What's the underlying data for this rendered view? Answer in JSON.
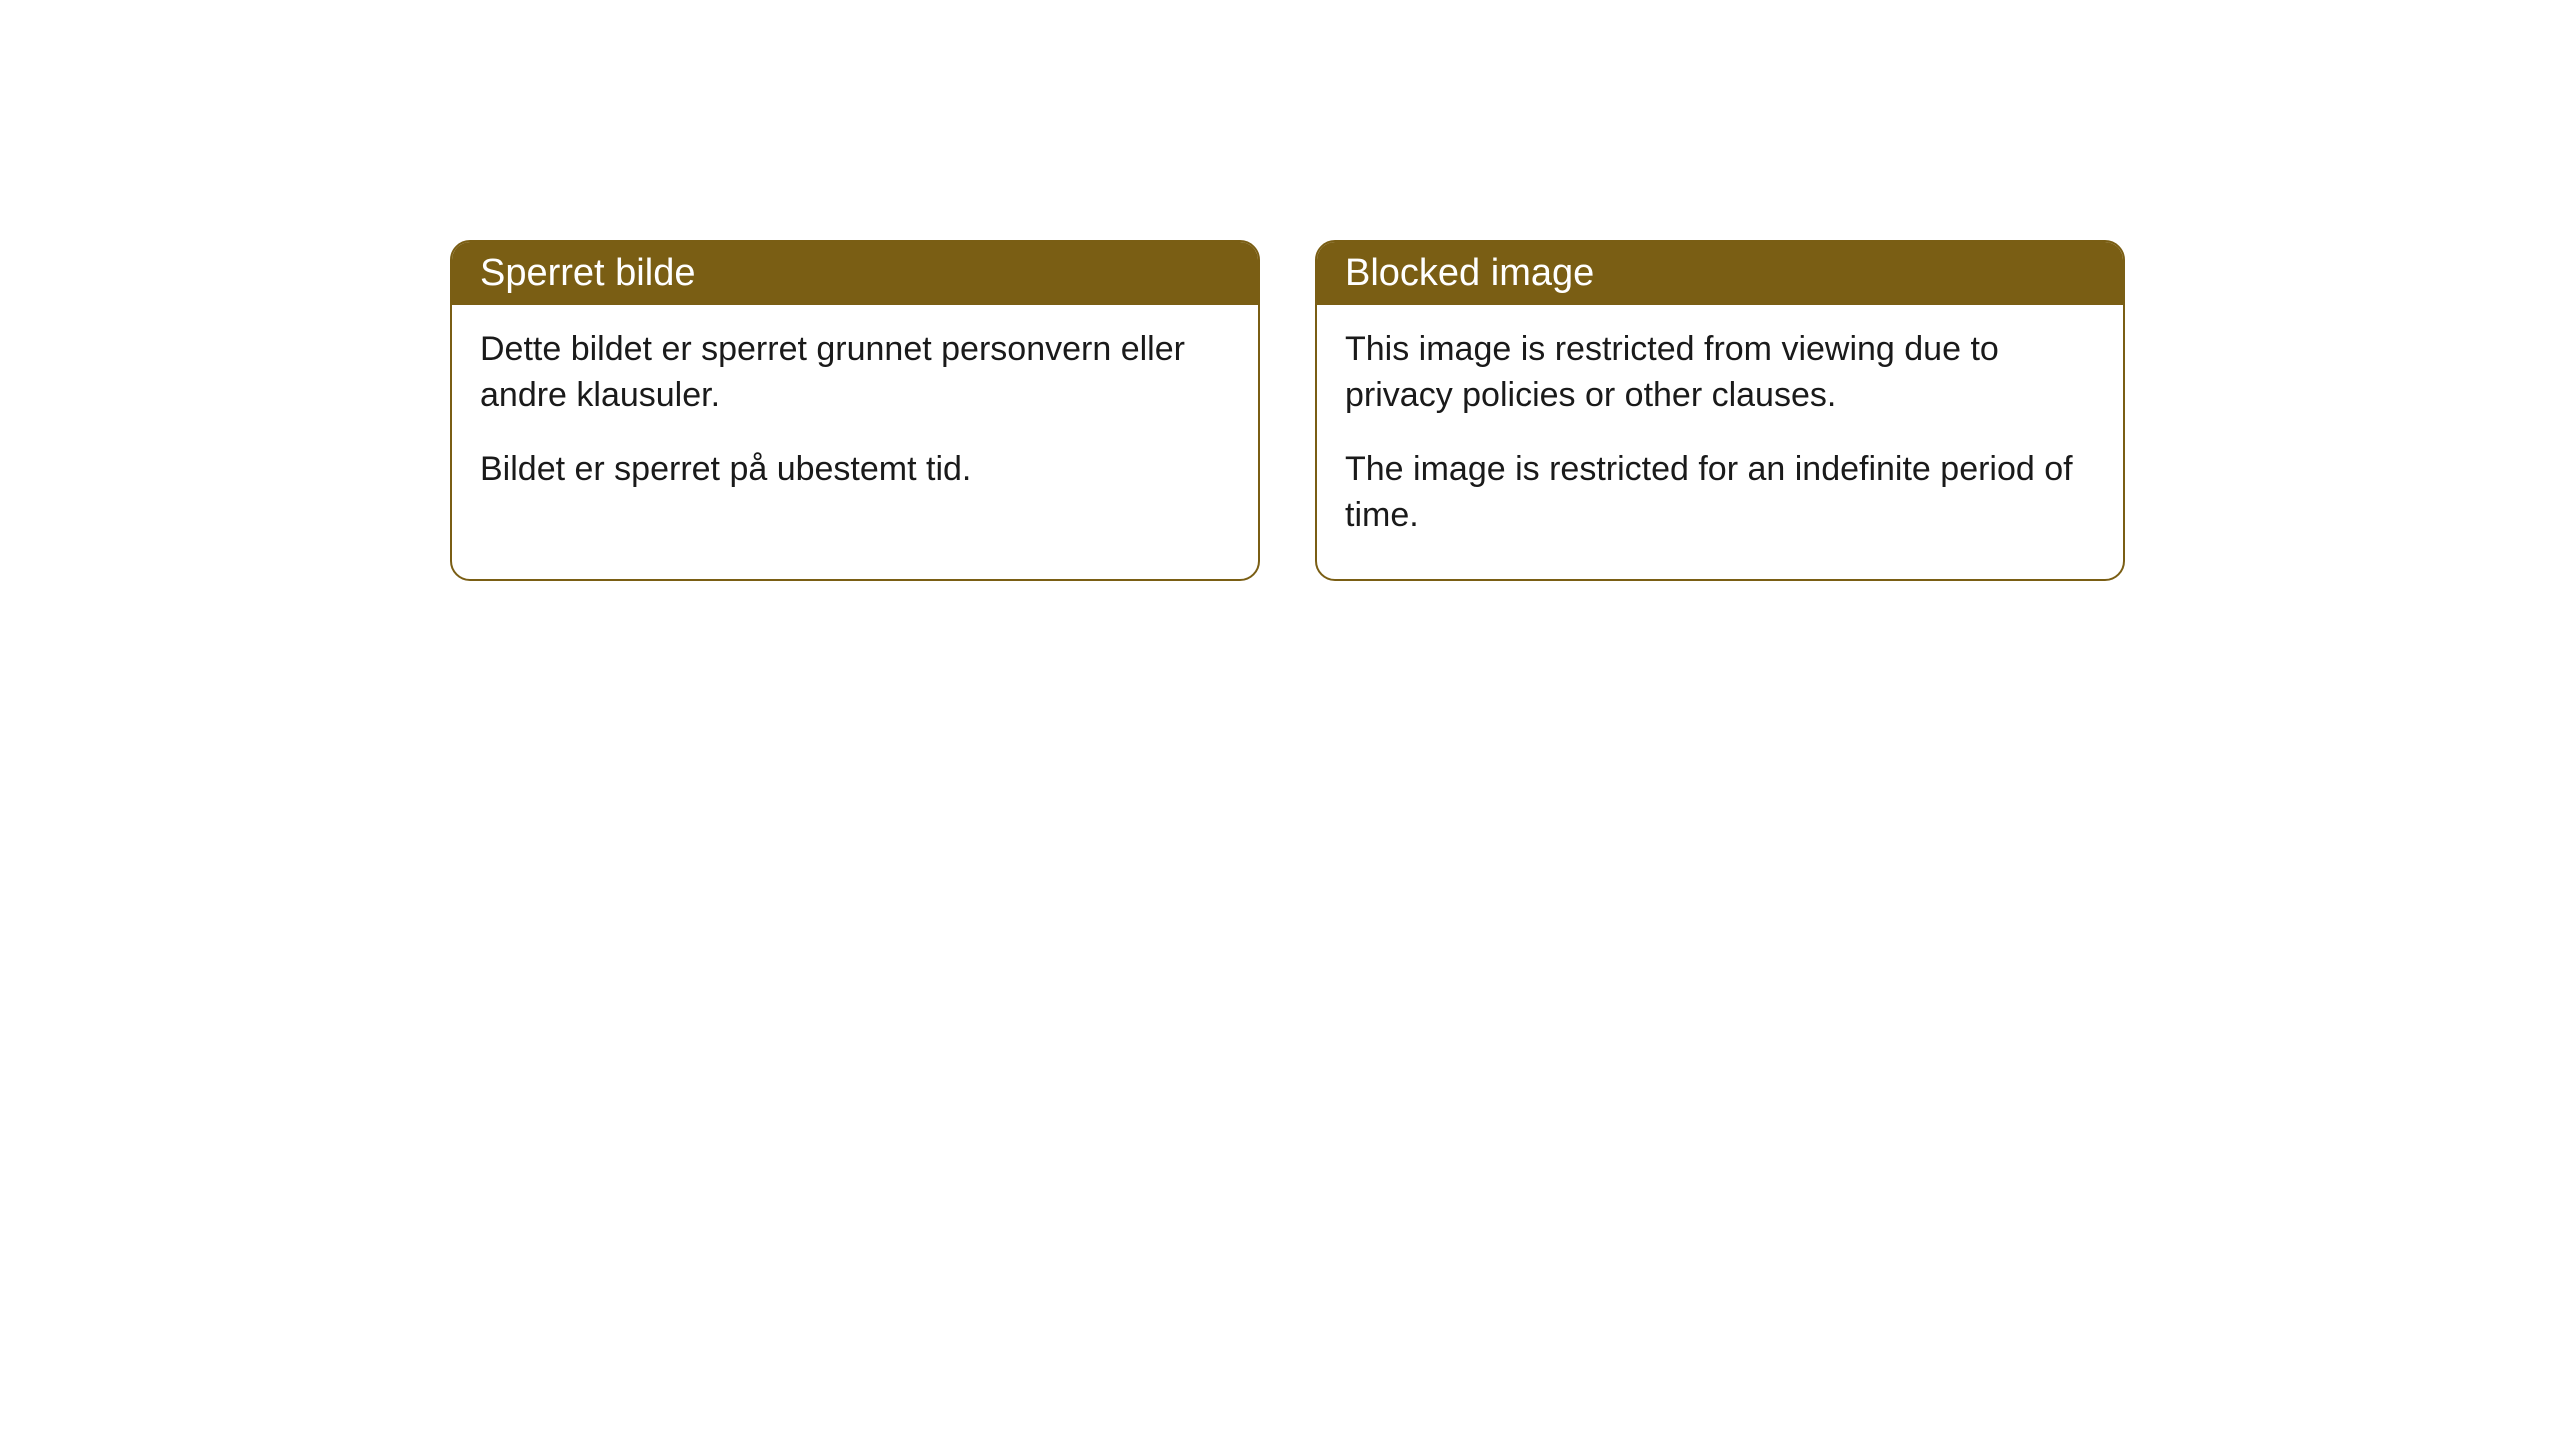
{
  "cards": [
    {
      "title": "Sperret bilde",
      "paragraph1": "Dette bildet er sperret grunnet personvern eller andre klausuler.",
      "paragraph2": "Bildet er sperret på ubestemt tid."
    },
    {
      "title": "Blocked image",
      "paragraph1": "This image is restricted from viewing due to privacy policies or other clauses.",
      "paragraph2": "The image is restricted for an indefinite period of time."
    }
  ],
  "styling": {
    "header_background": "#7a5e14",
    "header_text_color": "#ffffff",
    "border_color": "#7a5e14",
    "body_background": "#ffffff",
    "body_text_color": "#1a1a1a",
    "border_radius": 20,
    "title_fontsize": 38,
    "body_fontsize": 34
  }
}
